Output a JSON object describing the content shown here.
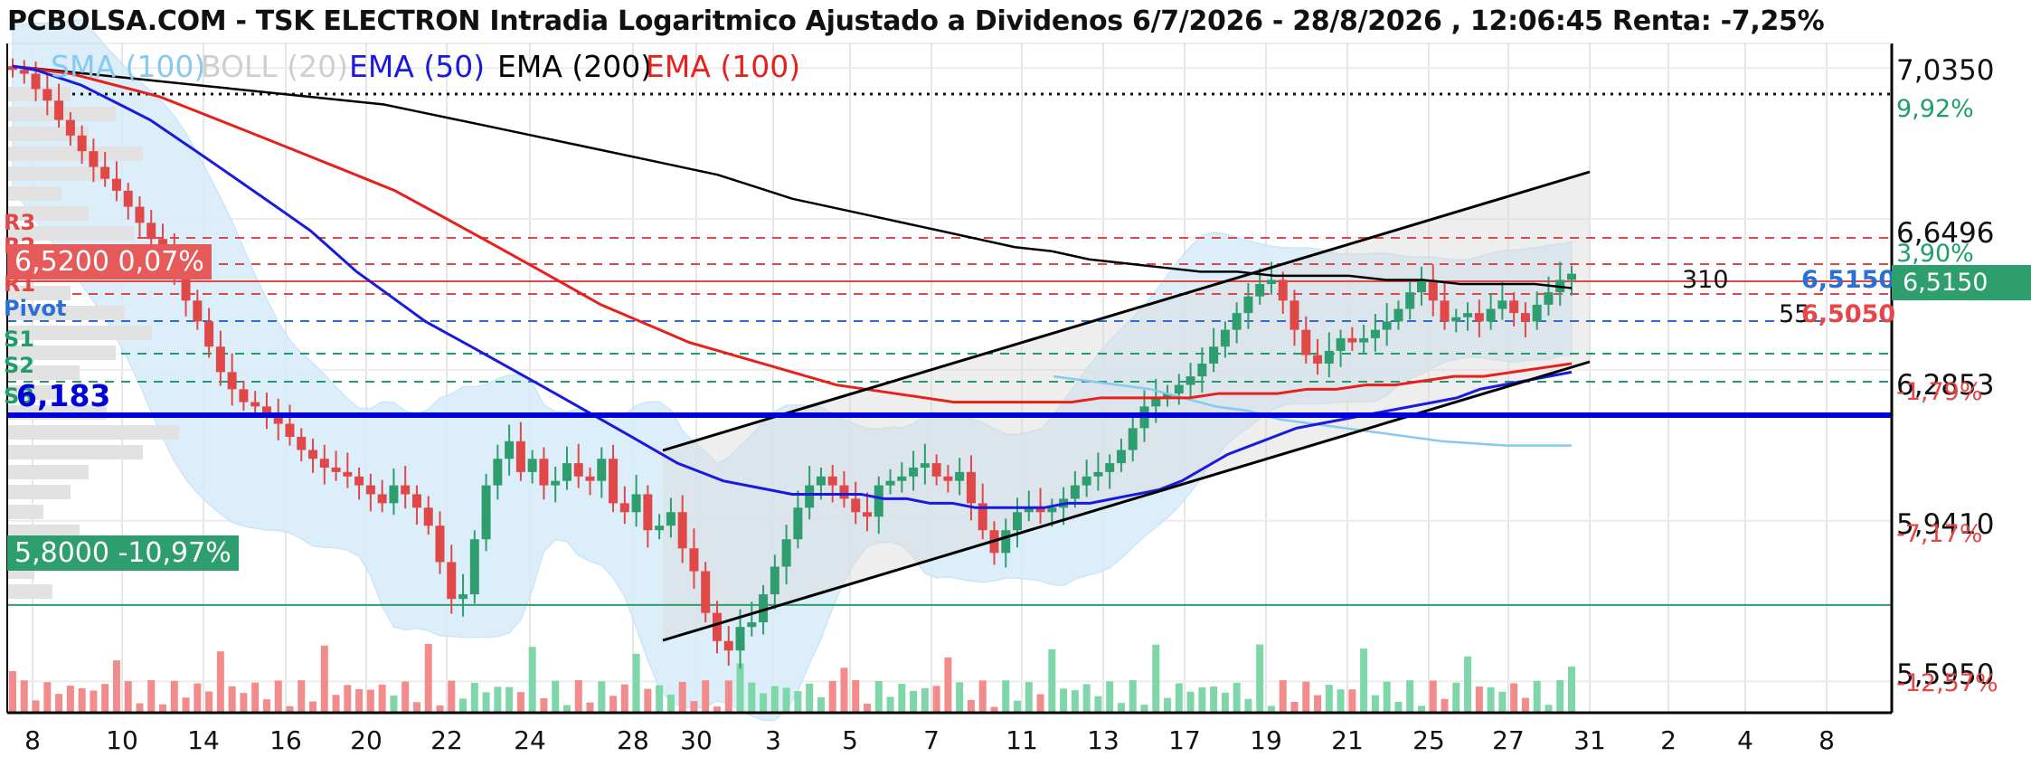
{
  "header": {
    "title": "PCBOLSA.COM - TSK ELECTRON Intradia Logaritmico Ajustado a Dividenos 6/7/2026 - 28/8/2026 , 12:06:45 Renta: -7,25%"
  },
  "legend": [
    {
      "label": "SMA (100)",
      "color": "#87c9ef"
    },
    {
      "label": "BOLL (20)",
      "color": "#cfcfcf"
    },
    {
      "label": "EMA (50)",
      "color": "#1a1adf"
    },
    {
      "label": "EMA (200)",
      "color": "#000000"
    },
    {
      "label": "EMA (100)",
      "color": "#e8201c"
    }
  ],
  "pivots": {
    "r3": "R3",
    "r2": "R2",
    "r1": "R1",
    "pivot": "Pivot",
    "s1": "S1",
    "s2": "S2",
    "s3": "S3"
  },
  "tags": {
    "current_price_tag": "6,5200  0,07%",
    "low_price_tag": "5,8000  -10,97%",
    "support_tag": "6,183"
  },
  "right_labels": {
    "vol_310": "310",
    "vol_55": "55",
    "price_6515": "6,5150",
    "price_6505": "6,5050",
    "last_price_badge": "6,5150"
  },
  "y_axis": {
    "ticks": [
      {
        "price": "7,0350",
        "pct": "9,92%",
        "pct_color": "#1f9d6a"
      },
      {
        "price": "6,6496",
        "pct": "3,90%",
        "pct_color": "#1f9d6a"
      },
      {
        "price": "6,2853",
        "pct": "-1,79%",
        "pct_color": "#e84545"
      },
      {
        "price": "5,9410",
        "pct": "-7,17%",
        "pct_color": "#e84545"
      },
      {
        "price": "5,5950",
        "pct": "-12,57%",
        "pct_color": "#e84545"
      }
    ]
  },
  "x_axis": {
    "ticks": [
      "8",
      "10",
      "14",
      "16",
      "20",
      "22",
      "24",
      "28",
      "30",
      "3",
      "5",
      "7",
      "11",
      "13",
      "17",
      "19",
      "21",
      "25",
      "27",
      "31",
      "2",
      "4",
      "8"
    ]
  },
  "colors": {
    "up": "#2e9e6e",
    "down": "#e04848",
    "ema50": "#1a1adf",
    "ema100": "#e8201c",
    "ema200": "#000000",
    "sma100": "#87c9ef",
    "boll": "#d7ecf9",
    "support": "#0000dd",
    "green_tag": "#2e9e6e",
    "red_tag": "#e65a5a"
  },
  "chart_data": {
    "type": "candlestick",
    "title": "PCBOLSA.COM - TSK ELECTRON Intradia Logaritmico Ajustado a Dividenos 6/7/2026 - 28/8/2026 , 12:06:45 Renta: -7,25%",
    "y_scale": "log",
    "ylim": [
      5.53,
      7.1
    ],
    "close": [
      7.03,
      7.02,
      6.98,
      6.95,
      6.9,
      6.86,
      6.82,
      6.78,
      6.75,
      6.72,
      6.68,
      6.64,
      6.6,
      6.57,
      6.52,
      6.45,
      6.4,
      6.34,
      6.28,
      6.24,
      6.21,
      6.2,
      6.18,
      6.16,
      6.13,
      6.1,
      6.08,
      6.06,
      6.05,
      6.04,
      6.02,
      6.0,
      5.98,
      6.02,
      6.0,
      5.97,
      5.93,
      5.85,
      5.77,
      5.78,
      5.9,
      6.02,
      6.08,
      6.12,
      6.05,
      6.08,
      6.02,
      6.03,
      6.07,
      6.04,
      6.03,
      6.08,
      5.98,
      5.96,
      6.0,
      5.92,
      5.93,
      5.96,
      5.88,
      5.83,
      5.74,
      5.68,
      5.66,
      5.71,
      5.72,
      5.78,
      5.84,
      5.9,
      5.97,
      6.02,
      6.04,
      6.02,
      5.99,
      5.96,
      5.95,
      6.02,
      6.03,
      6.04,
      6.06,
      6.07,
      6.04,
      6.03,
      6.05,
      5.98,
      5.92,
      5.87,
      5.92,
      5.96,
      5.97,
      5.96,
      5.97,
      5.99,
      6.02,
      6.04,
      6.05,
      6.07,
      6.1,
      6.15,
      6.2,
      6.22,
      6.23,
      6.25,
      6.27,
      6.3,
      6.34,
      6.38,
      6.42,
      6.46,
      6.49,
      6.5,
      6.45,
      6.38,
      6.32,
      6.3,
      6.33,
      6.36,
      6.35,
      6.36,
      6.38,
      6.4,
      6.43,
      6.47,
      6.5,
      6.45,
      6.4,
      6.41,
      6.42,
      6.4,
      6.43,
      6.45,
      6.42,
      6.4,
      6.44,
      6.47,
      6.5,
      6.515
    ],
    "ema50": [
      7.04,
      7.03,
      7.01,
      6.99,
      6.96,
      6.93,
      6.9,
      6.86,
      6.82,
      6.78,
      6.74,
      6.7,
      6.66,
      6.62,
      6.57,
      6.52,
      6.48,
      6.44,
      6.4,
      6.37,
      6.34,
      6.31,
      6.28,
      6.25,
      6.22,
      6.19,
      6.16,
      6.13,
      6.1,
      6.07,
      6.05,
      6.03,
      6.02,
      6.01,
      6.0,
      6.0,
      6.0,
      6.0,
      5.99,
      5.99,
      5.98,
      5.98,
      5.97,
      5.97,
      5.97,
      5.97,
      5.98,
      5.98,
      5.99,
      6.0,
      6.01,
      6.03,
      6.06,
      6.09,
      6.11,
      6.13,
      6.15,
      6.16,
      6.17,
      6.18,
      6.19,
      6.2,
      6.21,
      6.22,
      6.24,
      6.25,
      6.26,
      6.27,
      6.28
    ],
    "ema100": [
      7.04,
      7.03,
      7.02,
      7.0,
      6.98,
      6.96,
      6.93,
      6.9,
      6.87,
      6.84,
      6.81,
      6.78,
      6.75,
      6.72,
      6.68,
      6.64,
      6.6,
      6.56,
      6.52,
      6.48,
      6.44,
      6.41,
      6.38,
      6.35,
      6.33,
      6.31,
      6.29,
      6.27,
      6.25,
      6.24,
      6.23,
      6.22,
      6.21,
      6.21,
      6.21,
      6.21,
      6.21,
      6.22,
      6.22,
      6.22,
      6.22,
      6.23,
      6.23,
      6.23,
      6.24,
      6.24,
      6.25,
      6.25,
      6.26,
      6.27,
      6.27,
      6.28,
      6.29,
      6.3
    ],
    "ema200": [
      7.04,
      7.03,
      7.02,
      7.01,
      7.0,
      6.99,
      6.98,
      6.97,
      6.96,
      6.95,
      6.94,
      6.92,
      6.9,
      6.88,
      6.86,
      6.84,
      6.82,
      6.8,
      6.78,
      6.76,
      6.73,
      6.7,
      6.68,
      6.66,
      6.64,
      6.62,
      6.6,
      6.58,
      6.57,
      6.55,
      6.54,
      6.53,
      6.52,
      6.52,
      6.51,
      6.51,
      6.51,
      6.5,
      6.5,
      6.49,
      6.49,
      6.49,
      6.48
    ],
    "support_level": 6.183,
    "low_level": 5.8,
    "last_price": 6.515
  }
}
